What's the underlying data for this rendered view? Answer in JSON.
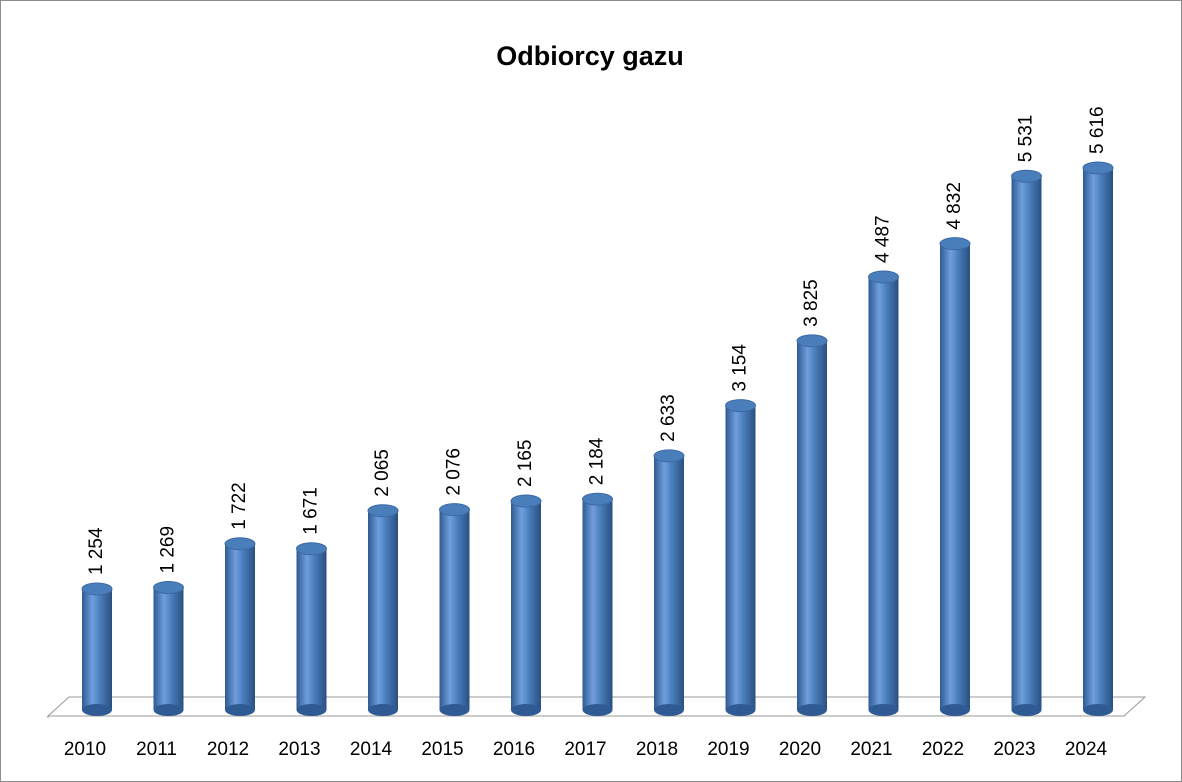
{
  "chart_data": {
    "type": "bar",
    "title": "Odbiorcy gazu",
    "categories": [
      "2010",
      "2011",
      "2012",
      "2013",
      "2014",
      "2015",
      "2016",
      "2017",
      "2018",
      "2019",
      "2020",
      "2021",
      "2022",
      "2023",
      "2024"
    ],
    "values": [
      1254,
      1269,
      1722,
      1671,
      2065,
      2076,
      2165,
      2184,
      2633,
      3154,
      3825,
      4487,
      4832,
      5531,
      5616
    ],
    "value_labels": [
      "1 254",
      "1 269",
      "1 722",
      "1 671",
      "2 065",
      "2 076",
      "2 165",
      "2 184",
      "2 633",
      "3 154",
      "3 825",
      "4 487",
      "4 832",
      "5 531",
      "5 616"
    ],
    "color": "#4a7ebb"
  }
}
